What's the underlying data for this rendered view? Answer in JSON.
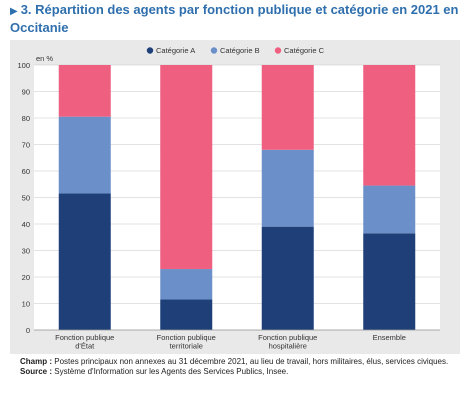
{
  "title": "3. Répartition des agents par fonction publique et catégorie en 2021 en Occitanie",
  "notes": {
    "champ_label": "Champ :",
    "champ_text": "Postes principaux non annexes au 31 décembre 2021, au lieu de travail, hors militaires, élus, services civiques.",
    "source_label": "Source :",
    "source_text": "Système d'Information sur les Agents des Services Publics, Insee."
  },
  "chart_data": {
    "type": "bar",
    "stacked": true,
    "ylabel": "en %",
    "ylim": [
      0,
      100
    ],
    "yticks": [
      0,
      10,
      20,
      30,
      40,
      50,
      60,
      70,
      80,
      90,
      100
    ],
    "grid": true,
    "legend_position": "top",
    "categories": [
      [
        "Fonction publique",
        "d'État"
      ],
      [
        "Fonction publique",
        "territoriale"
      ],
      [
        "Fonction publique",
        "hospitalière"
      ],
      [
        "Ensemble"
      ]
    ],
    "series": [
      {
        "name": "Catégorie A",
        "color": "#1f3f78",
        "values": [
          51.5,
          11.5,
          39,
          36.5
        ]
      },
      {
        "name": "Catégorie B",
        "color": "#6b8fc9",
        "values": [
          29,
          11.5,
          29,
          18
        ]
      },
      {
        "name": "Catégorie C",
        "color": "#ee5f80",
        "values": [
          19.5,
          77,
          32,
          45.5
        ]
      }
    ]
  }
}
